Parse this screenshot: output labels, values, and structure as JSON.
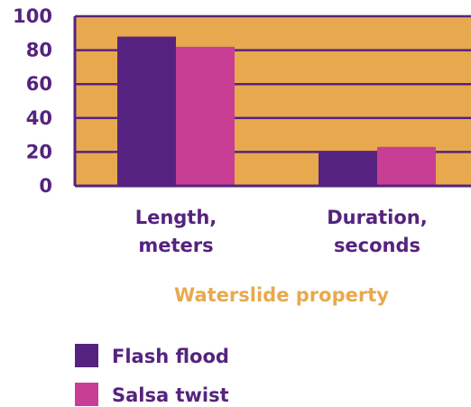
{
  "chart_data": {
    "type": "bar",
    "categories": [
      "Length,\nmeters",
      "Duration,\nseconds"
    ],
    "series": [
      {
        "name": "Flash flood",
        "values": [
          88,
          20
        ],
        "color": "#55237f"
      },
      {
        "name": "Salsa twist",
        "values": [
          82,
          23
        ],
        "color": "#c83e95"
      }
    ],
    "xlabel": "Waterslide property",
    "ylabel": "",
    "ylim": [
      0,
      100
    ],
    "yticks": [
      0,
      20,
      40,
      60,
      80,
      100
    ],
    "grid": true,
    "legend": "bottom-left",
    "plot_bg": "#e8a94e",
    "axis_color": "#55237f",
    "xlabel_color": "#e8a94e"
  }
}
